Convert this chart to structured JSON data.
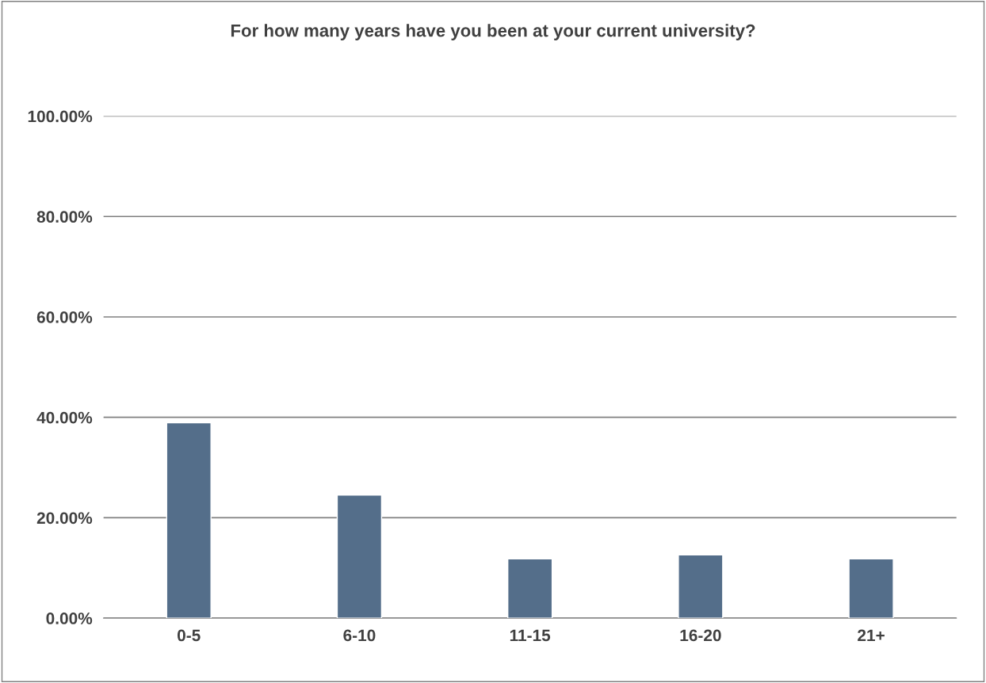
{
  "chart_data": {
    "type": "bar",
    "title": "For how many years have you been at your current university?",
    "categories": [
      "0-5",
      "6-10",
      "11-15",
      "16-20",
      "21+"
    ],
    "values": [
      38.9,
      24.5,
      11.8,
      12.6,
      11.8
    ],
    "color": "#546e8a",
    "ylim": [
      0,
      100
    ],
    "yticks": [
      {
        "value": 0,
        "label": "0.00%"
      },
      {
        "value": 20,
        "label": "20.00%"
      },
      {
        "value": 40,
        "label": "40.00%"
      },
      {
        "value": 60,
        "label": "60.00%"
      },
      {
        "value": 80,
        "label": "80.00%"
      },
      {
        "value": 100,
        "label": "100.00%"
      }
    ],
    "grid": "y"
  }
}
